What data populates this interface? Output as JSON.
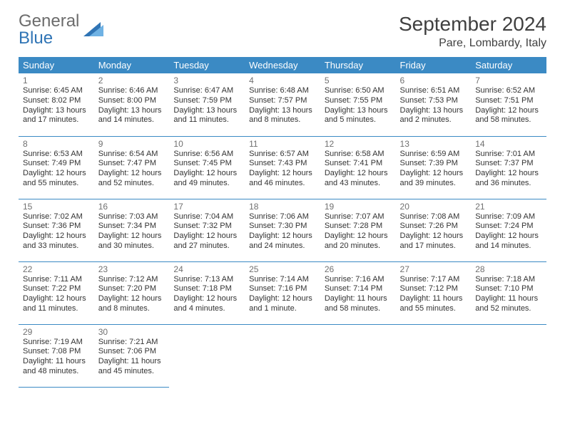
{
  "logo": {
    "top": "General",
    "bottom": "Blue"
  },
  "title": "September 2024",
  "location": "Pare, Lombardy, Italy",
  "colors": {
    "header_bg": "#3b8ac4",
    "header_text": "#ffffff",
    "rule": "#3b8ac4",
    "logo_gray": "#6c6c6c",
    "logo_blue": "#2f74b5",
    "text": "#333333",
    "daynum": "#707070",
    "bg": "#ffffff"
  },
  "weekdays": [
    "Sunday",
    "Monday",
    "Tuesday",
    "Wednesday",
    "Thursday",
    "Friday",
    "Saturday"
  ],
  "days": [
    {
      "n": "1",
      "sr": "6:45 AM",
      "ss": "8:02 PM",
      "dl": "13 hours and 17 minutes."
    },
    {
      "n": "2",
      "sr": "6:46 AM",
      "ss": "8:00 PM",
      "dl": "13 hours and 14 minutes."
    },
    {
      "n": "3",
      "sr": "6:47 AM",
      "ss": "7:59 PM",
      "dl": "13 hours and 11 minutes."
    },
    {
      "n": "4",
      "sr": "6:48 AM",
      "ss": "7:57 PM",
      "dl": "13 hours and 8 minutes."
    },
    {
      "n": "5",
      "sr": "6:50 AM",
      "ss": "7:55 PM",
      "dl": "13 hours and 5 minutes."
    },
    {
      "n": "6",
      "sr": "6:51 AM",
      "ss": "7:53 PM",
      "dl": "13 hours and 2 minutes."
    },
    {
      "n": "7",
      "sr": "6:52 AM",
      "ss": "7:51 PM",
      "dl": "12 hours and 58 minutes."
    },
    {
      "n": "8",
      "sr": "6:53 AM",
      "ss": "7:49 PM",
      "dl": "12 hours and 55 minutes."
    },
    {
      "n": "9",
      "sr": "6:54 AM",
      "ss": "7:47 PM",
      "dl": "12 hours and 52 minutes."
    },
    {
      "n": "10",
      "sr": "6:56 AM",
      "ss": "7:45 PM",
      "dl": "12 hours and 49 minutes."
    },
    {
      "n": "11",
      "sr": "6:57 AM",
      "ss": "7:43 PM",
      "dl": "12 hours and 46 minutes."
    },
    {
      "n": "12",
      "sr": "6:58 AM",
      "ss": "7:41 PM",
      "dl": "12 hours and 43 minutes."
    },
    {
      "n": "13",
      "sr": "6:59 AM",
      "ss": "7:39 PM",
      "dl": "12 hours and 39 minutes."
    },
    {
      "n": "14",
      "sr": "7:01 AM",
      "ss": "7:37 PM",
      "dl": "12 hours and 36 minutes."
    },
    {
      "n": "15",
      "sr": "7:02 AM",
      "ss": "7:36 PM",
      "dl": "12 hours and 33 minutes."
    },
    {
      "n": "16",
      "sr": "7:03 AM",
      "ss": "7:34 PM",
      "dl": "12 hours and 30 minutes."
    },
    {
      "n": "17",
      "sr": "7:04 AM",
      "ss": "7:32 PM",
      "dl": "12 hours and 27 minutes."
    },
    {
      "n": "18",
      "sr": "7:06 AM",
      "ss": "7:30 PM",
      "dl": "12 hours and 24 minutes."
    },
    {
      "n": "19",
      "sr": "7:07 AM",
      "ss": "7:28 PM",
      "dl": "12 hours and 20 minutes."
    },
    {
      "n": "20",
      "sr": "7:08 AM",
      "ss": "7:26 PM",
      "dl": "12 hours and 17 minutes."
    },
    {
      "n": "21",
      "sr": "7:09 AM",
      "ss": "7:24 PM",
      "dl": "12 hours and 14 minutes."
    },
    {
      "n": "22",
      "sr": "7:11 AM",
      "ss": "7:22 PM",
      "dl": "12 hours and 11 minutes."
    },
    {
      "n": "23",
      "sr": "7:12 AM",
      "ss": "7:20 PM",
      "dl": "12 hours and 8 minutes."
    },
    {
      "n": "24",
      "sr": "7:13 AM",
      "ss": "7:18 PM",
      "dl": "12 hours and 4 minutes."
    },
    {
      "n": "25",
      "sr": "7:14 AM",
      "ss": "7:16 PM",
      "dl": "12 hours and 1 minute."
    },
    {
      "n": "26",
      "sr": "7:16 AM",
      "ss": "7:14 PM",
      "dl": "11 hours and 58 minutes."
    },
    {
      "n": "27",
      "sr": "7:17 AM",
      "ss": "7:12 PM",
      "dl": "11 hours and 55 minutes."
    },
    {
      "n": "28",
      "sr": "7:18 AM",
      "ss": "7:10 PM",
      "dl": "11 hours and 52 minutes."
    },
    {
      "n": "29",
      "sr": "7:19 AM",
      "ss": "7:08 PM",
      "dl": "11 hours and 48 minutes."
    },
    {
      "n": "30",
      "sr": "7:21 AM",
      "ss": "7:06 PM",
      "dl": "11 hours and 45 minutes."
    }
  ],
  "labels": {
    "sunrise": "Sunrise:",
    "sunset": "Sunset:",
    "daylight": "Daylight:"
  },
  "layout": {
    "start_weekday": 0,
    "cols": 7,
    "rows": 5
  }
}
